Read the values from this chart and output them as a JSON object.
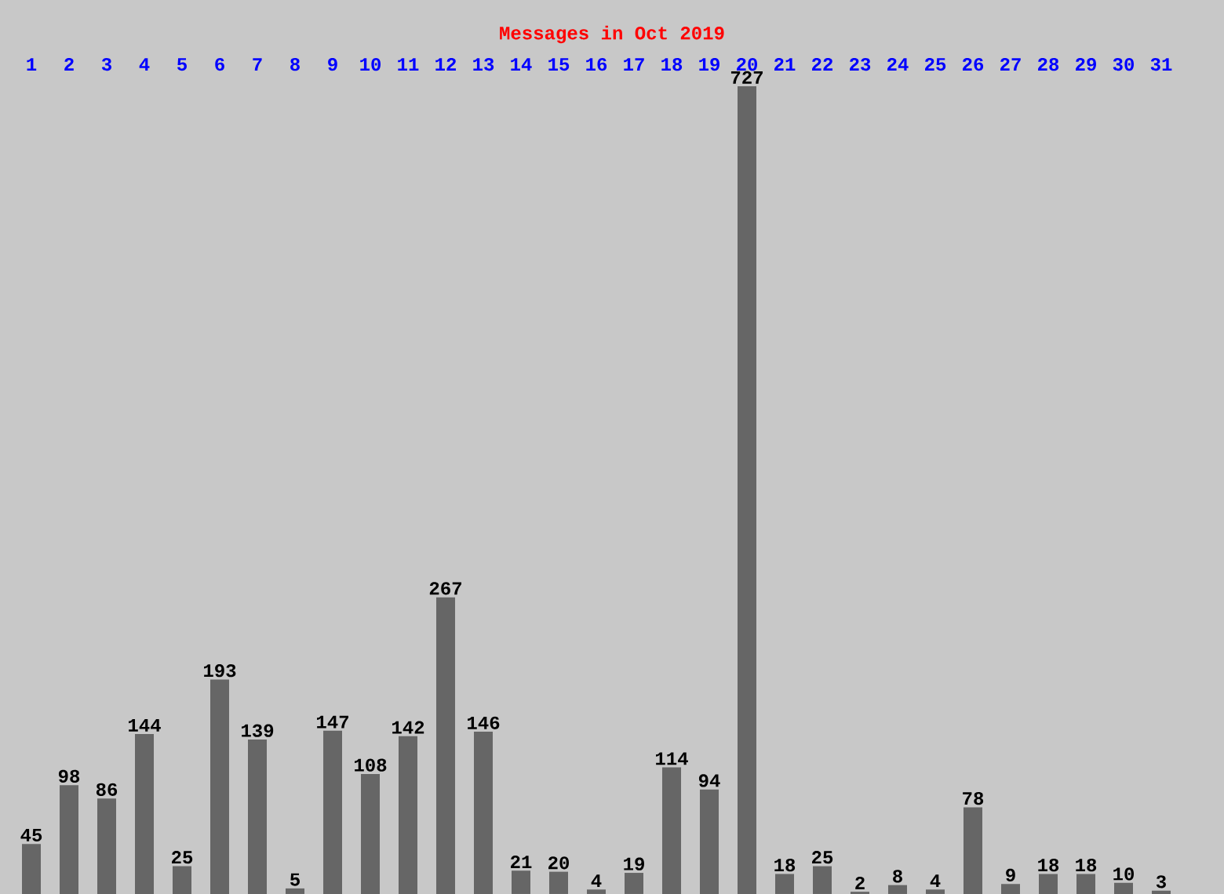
{
  "chart_data": {
    "type": "bar",
    "title": "Messages in Oct 2019",
    "categories": [
      "1",
      "2",
      "3",
      "4",
      "5",
      "6",
      "7",
      "8",
      "9",
      "10",
      "11",
      "12",
      "13",
      "14",
      "15",
      "16",
      "17",
      "18",
      "19",
      "20",
      "21",
      "22",
      "23",
      "24",
      "25",
      "26",
      "27",
      "28",
      "29",
      "30",
      "31"
    ],
    "values": [
      45,
      98,
      86,
      144,
      25,
      193,
      139,
      5,
      147,
      108,
      142,
      267,
      146,
      21,
      20,
      4,
      19,
      114,
      94,
      727,
      18,
      25,
      2,
      8,
      4,
      78,
      9,
      18,
      18,
      10,
      3
    ],
    "color": "#666666",
    "data_labels": true
  }
}
